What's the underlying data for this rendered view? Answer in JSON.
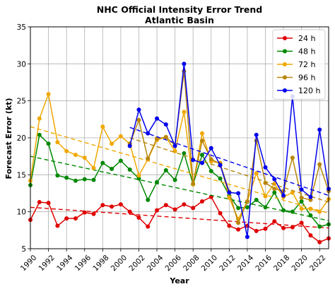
{
  "chart_data": {
    "type": "line",
    "title": "NHC Official Intensity Error Trend",
    "subtitle": "Atlantic Basin",
    "xlabel": "Year",
    "ylabel": "Forecast Error (kt)",
    "xlim": [
      1990,
      2023
    ],
    "ylim": [
      5,
      35
    ],
    "xticks": [
      "1990",
      "1992",
      "1994",
      "1996",
      "1998",
      "2000",
      "2002",
      "2004",
      "2006",
      "2008",
      "2010",
      "2012",
      "2014",
      "2016",
      "2018",
      "2020",
      "2022"
    ],
    "yticks": [
      "5",
      "10",
      "15",
      "20",
      "25",
      "30",
      "35"
    ],
    "grid": true,
    "legend_position": "top-right",
    "series": [
      {
        "name": "24 h",
        "color": "#e00000",
        "start_year": 1990,
        "values": [
          8.9,
          11.3,
          11.2,
          8.1,
          9.1,
          9.1,
          9.9,
          9.7,
          10.9,
          10.7,
          11.0,
          10.0,
          9.2,
          8.0,
          10.2,
          10.9,
          10.3,
          11.0,
          10.5,
          11.4,
          12.0,
          9.8,
          8.1,
          7.6,
          8.1,
          7.4,
          7.7,
          8.7,
          7.8,
          7.9,
          8.5,
          6.8,
          5.9,
          6.4
        ],
        "trend": [
          10.6,
          7.8
        ]
      },
      {
        "name": "48 h",
        "color": "#008800",
        "start_year": 1990,
        "values": [
          13.6,
          20.4,
          19.2,
          14.9,
          14.6,
          14.2,
          14.4,
          14.3,
          16.6,
          15.8,
          16.9,
          15.7,
          14.5,
          11.6,
          14.0,
          15.6,
          14.3,
          17.9,
          13.7,
          17.7,
          15.5,
          14.5,
          12.2,
          10.5,
          10.6,
          11.6,
          10.6,
          12.6,
          10.2,
          10.0,
          11.4,
          9.5,
          8.0,
          8.3
        ],
        "trend": [
          17.5,
          8.8
        ]
      },
      {
        "name": "72 h",
        "color": "#f0a800",
        "start_year": 1990,
        "values": [
          14.2,
          22.6,
          25.9,
          19.4,
          18.2,
          17.7,
          17.3,
          15.9,
          21.5,
          19.2,
          20.2,
          19.2,
          14.9,
          17.1,
          19.7,
          20.1,
          18.2,
          23.5,
          13.7,
          20.6,
          16.8,
          16.6,
          11.9,
          9.0,
          11.4,
          15.2,
          12.1,
          13.8,
          12.0,
          12.6,
          10.4,
          10.4,
          10.0,
          11.7
        ],
        "trend": [
          21.5,
          9.8
        ]
      },
      {
        "name": "96 h",
        "color": "#b8860b",
        "start_year": 2001,
        "values": [
          19.2,
          22.4,
          17.2,
          19.9,
          20.1,
          19.0,
          29.0,
          13.8,
          19.6,
          17.1,
          16.5,
          12.7,
          8.5,
          11.4,
          19.6,
          13.9,
          13.1,
          12.8,
          17.3,
          11.9,
          11.6,
          16.4,
          12.8
        ],
        "trend": [
          20.0,
          11.3
        ]
      },
      {
        "name": "120 h",
        "color": "#0000ee",
        "start_year": 2001,
        "values": [
          18.9,
          23.8,
          20.6,
          22.6,
          21.8,
          18.9,
          30.0,
          17.0,
          16.6,
          18.6,
          16.3,
          12.6,
          12.5,
          6.6,
          20.4,
          16.0,
          14.4,
          12.2,
          25.6,
          13.0,
          12.0,
          21.1,
          13.1
        ],
        "trend": [
          21.4,
          12.2
        ]
      }
    ]
  }
}
